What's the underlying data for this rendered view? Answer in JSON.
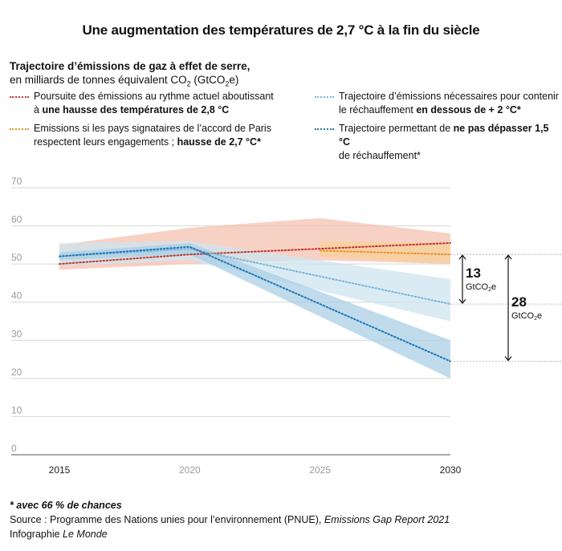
{
  "title": "Une augmentation des températures de 2,7 °C à la fin du siècle",
  "subtitle": {
    "line1": "Trajectoire d’émissions de gaz à effet de serre,",
    "line2_prefix": "en milliards de tonnes équivalent CO",
    "line2_sub": "2",
    "line2_mid": " (GtCO",
    "line2_sub2": "2",
    "line2_suffix": "e)"
  },
  "legend": [
    {
      "id": "actuel",
      "color": "#c0392b",
      "l1": "Poursuite des émissions au rythme actuel aboutissant",
      "l2a": "à ",
      "l2b": "une hausse des températures de 2,8 °C",
      "l2c": ""
    },
    {
      "id": "paris",
      "color": "#e8952c",
      "l1": "Emissions si les pays signataires de l’accord de Paris",
      "l2a": "respectent leurs engagements ; ",
      "l2b": "hausse de 2,7 °C*",
      "l2c": ""
    },
    {
      "id": "deux",
      "color": "#7bb6d8",
      "l1": "Trajectoire d’émissions nécessaires pour contenir",
      "l2a": "le réchauffement ",
      "l2b": "en dessous de + 2 °C*",
      "l2c": ""
    },
    {
      "id": "unecinq",
      "color": "#1f77b4",
      "l1a": "Trajectoire permettant de ",
      "l1b": "ne pas dépasser 1,5 °C",
      "l2a": "de réchauffement*",
      "l2b": "",
      "l2c": ""
    }
  ],
  "chart_data": {
    "type": "line",
    "x": [
      2015,
      2020,
      2025,
      2030
    ],
    "ylim": [
      0,
      70
    ],
    "yticks": [
      0,
      10,
      20,
      30,
      40,
      50,
      60,
      70
    ],
    "series": [
      {
        "name": "Poursuite des émissions au rythme actuel aboutissant à une hausse des températures de 2,8 °C",
        "color": "#c0392b",
        "band_color": "#f4c1b0",
        "x": [
          2015,
          2020,
          2025,
          2030
        ],
        "values": [
          50,
          52.5,
          54,
          55.5
        ],
        "band_upper": [
          55,
          59.5,
          62,
          58
        ],
        "band_lower": [
          48.5,
          50,
          51,
          50
        ]
      },
      {
        "name": "Emissions si les pays signataires de l’accord de Paris respectent leurs engagements ; hausse de 2,7 °C*",
        "color": "#e8952c",
        "band_color": "#f8cf9b",
        "x": [
          2025,
          2030
        ],
        "values": [
          53.5,
          52.5
        ],
        "band_upper": [
          56,
          55.5
        ],
        "band_lower": [
          52,
          50
        ]
      },
      {
        "name": "Trajectoire d’émissions nécessaires pour contenir le réchauffement en dessous de + 2 °C*",
        "color": "#7bb6d8",
        "band_color": "#cfe4f0",
        "x": [
          2015,
          2020,
          2030
        ],
        "values": [
          52,
          54,
          39.5
        ],
        "band_upper": [
          55.5,
          56,
          46
        ],
        "band_lower": [
          49.5,
          51,
          35
        ]
      },
      {
        "name": "Trajectoire permettant de ne pas dépasser 1,5 °C de réchauffement*",
        "color": "#1f77b4",
        "band_color": "#a9cfe6",
        "x": [
          2015,
          2020,
          2030
        ],
        "values": [
          52,
          54.5,
          24.5
        ],
        "band_upper": [
          53,
          55.5,
          30
        ],
        "band_lower": [
          51,
          52.5,
          20
        ]
      }
    ],
    "annotations": [
      {
        "value": "13",
        "unit_pre": "GtCO",
        "unit_sub": "2",
        "unit_post": "e",
        "from": 52.5,
        "to": 39.5
      },
      {
        "value": "28",
        "unit_pre": "GtCO",
        "unit_sub": "2",
        "unit_post": "e",
        "from": 52.5,
        "to": 24.5
      }
    ]
  },
  "notes": {
    "footnote": "* avec 66 % de chances",
    "source_prefix": "Source : Programme des Nations unies pour l’environnement (PNUE), ",
    "source_italic": "Emissions Gap Report 2021",
    "credit_prefix": "Infographie ",
    "credit_italic": "Le Monde"
  }
}
